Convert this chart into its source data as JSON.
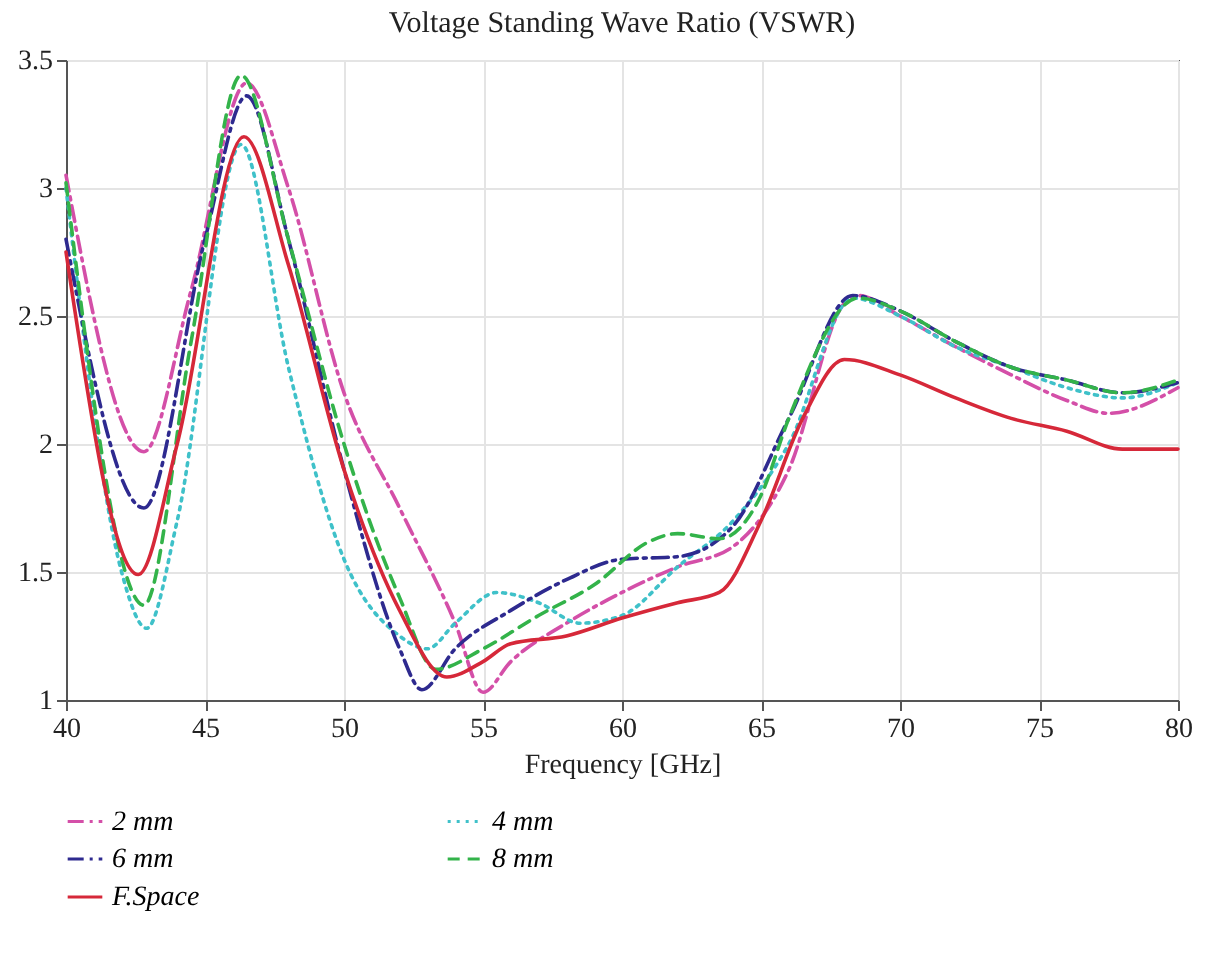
{
  "chart_data": {
    "type": "line",
    "title": "Voltage Standing Wave Ratio (VSWR)",
    "xlabel": "Frequency [GHz]",
    "xlim": [
      40,
      80
    ],
    "ylim": [
      1,
      3.5
    ],
    "xticks": [
      40,
      45,
      50,
      55,
      60,
      65,
      70,
      75,
      80
    ],
    "yticks": [
      1,
      1.5,
      2,
      2.5,
      3,
      3.5
    ],
    "grid": true,
    "legend": "bottom",
    "series": [
      {
        "name": "2 mm",
        "color": "#d44fa8",
        "line_style": "dashdot",
        "x": [
          40,
          42.8,
          44.5,
          46.5,
          48,
          50,
          52,
          54,
          55,
          56,
          58,
          60,
          62,
          64,
          66,
          68,
          68.5,
          70,
          72,
          74,
          76,
          77.5,
          80
        ],
        "values": [
          3.05,
          1.97,
          2.6,
          3.41,
          3.0,
          2.2,
          1.75,
          1.3,
          1.03,
          1.15,
          1.3,
          1.42,
          1.52,
          1.6,
          1.9,
          2.55,
          2.58,
          2.5,
          2.38,
          2.27,
          2.17,
          2.12,
          2.22
        ]
      },
      {
        "name": "4 mm",
        "color": "#3fc1c9",
        "line_style": "dotted",
        "x": [
          40,
          42,
          42.9,
          44,
          46.3,
          48,
          50,
          52,
          53,
          54,
          55.5,
          57,
          58.5,
          60,
          62,
          64,
          66,
          68.3,
          70,
          72,
          74,
          76,
          78,
          80
        ],
        "values": [
          3.0,
          1.5,
          1.28,
          1.7,
          3.17,
          2.3,
          1.55,
          1.25,
          1.2,
          1.3,
          1.42,
          1.38,
          1.3,
          1.33,
          1.52,
          1.7,
          2.0,
          2.57,
          2.5,
          2.38,
          2.3,
          2.22,
          2.18,
          2.24
        ]
      },
      {
        "name": "6 mm",
        "color": "#2e2a8f",
        "line_style": "dashdot",
        "x": [
          40,
          42.8,
          45,
          46.5,
          48,
          50,
          52,
          52.8,
          54,
          56,
          58,
          60,
          62,
          64,
          66,
          68.3,
          70,
          72,
          74,
          76,
          78,
          80
        ],
        "values": [
          2.8,
          1.75,
          2.8,
          3.36,
          2.8,
          1.9,
          1.2,
          1.04,
          1.2,
          1.35,
          1.47,
          1.55,
          1.56,
          1.68,
          2.1,
          2.58,
          2.52,
          2.4,
          2.3,
          2.25,
          2.2,
          2.24
        ]
      },
      {
        "name": "8 mm",
        "color": "#33b34a",
        "line_style": "dashed",
        "x": [
          40,
          42.8,
          44.5,
          46.3,
          48,
          50,
          52,
          53.3,
          55,
          57,
          59,
          61,
          62,
          63.5,
          65,
          66,
          68.5,
          70,
          72,
          74,
          76,
          78,
          80
        ],
        "values": [
          3.02,
          1.37,
          2.4,
          3.44,
          2.8,
          2.0,
          1.4,
          1.12,
          1.2,
          1.33,
          1.45,
          1.62,
          1.65,
          1.63,
          1.8,
          2.1,
          2.57,
          2.52,
          2.4,
          2.3,
          2.25,
          2.2,
          2.25
        ]
      },
      {
        "name": "F.Space",
        "color": "#d62839",
        "line_style": "solid",
        "x": [
          40,
          42.6,
          44,
          46.4,
          48,
          50,
          52,
          53.7,
          55,
          56,
          58,
          60,
          62,
          63.5,
          65,
          66.5,
          68,
          70,
          72,
          74,
          76,
          78,
          80
        ],
        "values": [
          2.75,
          1.49,
          2.0,
          3.2,
          2.7,
          1.9,
          1.35,
          1.09,
          1.15,
          1.22,
          1.25,
          1.32,
          1.38,
          1.42,
          1.7,
          2.1,
          2.33,
          2.27,
          2.18,
          2.1,
          2.05,
          1.98,
          1.98
        ]
      }
    ]
  }
}
